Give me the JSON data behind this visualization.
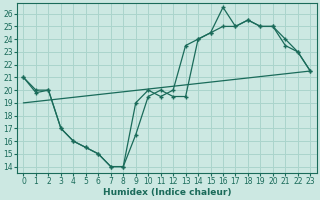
{
  "bg_color": "#cce8e2",
  "grid_color": "#aad4cc",
  "line_color": "#1a6b5a",
  "xlabel": "Humidex (Indice chaleur)",
  "xlim": [
    -0.5,
    23.5
  ],
  "ylim": [
    13.5,
    26.8
  ],
  "xticks": [
    0,
    1,
    2,
    3,
    4,
    5,
    6,
    7,
    8,
    9,
    10,
    11,
    12,
    13,
    14,
    15,
    16,
    17,
    18,
    19,
    20,
    21,
    22,
    23
  ],
  "yticks": [
    14,
    15,
    16,
    17,
    18,
    19,
    20,
    21,
    22,
    23,
    24,
    25,
    26
  ],
  "curve1_x": [
    0,
    1,
    2,
    3,
    4,
    5,
    6,
    7,
    8,
    9,
    10,
    11,
    12,
    13,
    14,
    15,
    16,
    17,
    18,
    19,
    20,
    21,
    22,
    23
  ],
  "curve1_y": [
    21,
    20,
    20,
    17,
    16,
    15.5,
    15,
    14,
    14,
    19,
    20,
    19.5,
    20,
    23.5,
    24,
    24.5,
    26.5,
    25,
    25.5,
    25,
    25,
    24,
    23,
    21.5
  ],
  "curve2_x": [
    0,
    1,
    2,
    3,
    4,
    5,
    6,
    7,
    8,
    9,
    10,
    11,
    12,
    13,
    14,
    15,
    16,
    17,
    18,
    19,
    20,
    21,
    22,
    23
  ],
  "curve2_y": [
    21,
    19.8,
    20,
    17,
    16,
    15.5,
    15,
    14,
    14,
    16.5,
    19.5,
    20,
    19.5,
    19.5,
    24,
    24.5,
    25,
    25,
    25.5,
    25,
    25,
    23.5,
    23,
    21.5
  ],
  "line3_x": [
    0,
    23
  ],
  "line3_y": [
    19.0,
    21.5
  ]
}
